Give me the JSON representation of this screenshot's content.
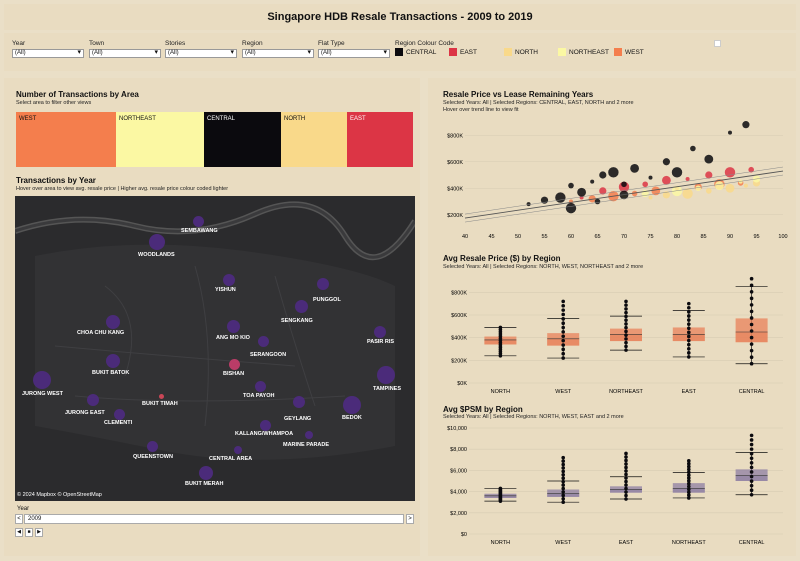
{
  "title": "Singapore HDB Resale Transactions - 2009 to 2019",
  "filters": [
    {
      "label": "Year",
      "value": "(All)"
    },
    {
      "label": "Town",
      "value": "(All)"
    },
    {
      "label": "Stories",
      "value": "(All)"
    },
    {
      "label": "Region",
      "value": "(All)"
    },
    {
      "label": "Flat Type",
      "value": "(All)"
    }
  ],
  "region_legend": {
    "title": "Region Colour Code",
    "items": [
      {
        "label": "CENTRAL",
        "color": "#0b0a0e"
      },
      {
        "label": "EAST",
        "color": "#dc3545"
      },
      {
        "label": "NORTH",
        "color": "#f9d98a"
      },
      {
        "label": "NORTHEAST",
        "color": "#fbf8a3"
      },
      {
        "label": "WEST",
        "color": "#f47e4d"
      }
    ]
  },
  "area_panel": {
    "title": "Number of Transactions by Area",
    "subtitle": "Select area to filter other views",
    "boxes": [
      {
        "label": "WEST",
        "color": "#f47e4d"
      },
      {
        "label": "NORTHEAST",
        "color": "#fbf8a3"
      },
      {
        "label": "CENTRAL",
        "color": "#0b0a0e"
      },
      {
        "label": "NORTH",
        "color": "#f9d98a"
      },
      {
        "label": "EAST",
        "color": "#dc3545"
      }
    ]
  },
  "map_panel": {
    "title": "Transactions by Year",
    "subtitle": "Hover over area to view avg. resale price | Higher avg. resale price colour coded lighter",
    "attribution": "© 2024 Mapbox © OpenStreetMap",
    "towns": [
      "SEMBAWANG",
      "WOODLANDS",
      "YISHUN",
      "PUNGGOL",
      "SENGKANG",
      "CHOA CHU KANG",
      "ANG MO KIO",
      "PASIR RIS",
      "SERANGOON",
      "BUKIT BATOK",
      "BISHAN",
      "TAMPINES",
      "JURONG WEST",
      "TOA PAYOH",
      "BUKIT TIMAH",
      "JURONG EAST",
      "GEYLANG",
      "BEDOK",
      "CLEMENTI",
      "KALLANG/WHAMPOA",
      "MARINE PARADE",
      "QUEENSTOWN",
      "CENTRAL AREA",
      "BUKIT MERAH"
    ]
  },
  "year_control": {
    "label": "Year",
    "value": "2009",
    "prev": "<",
    "next": ">"
  },
  "scatter_panel": {
    "title": "Resale Price vs Lease Remaining Years",
    "subtitle1": "Selected Years: All | Selected Regions: CENTRAL, EAST, NORTH and 2 more",
    "subtitle2": "Hover over trend line to view fit"
  },
  "box_price_panel": {
    "title": "Avg Resale Price ($) by Region",
    "subtitle": "Selected Years: All | Selected Regions: NORTH, WEST, NORTHEAST and 2 more"
  },
  "box_psm_panel": {
    "title": "Avg $PSM by Region",
    "subtitle": "Selected Years: All | Selected Regions: NORTH, WEST, EAST and 2 more"
  },
  "chart_data": [
    {
      "type": "scatter",
      "title": "Resale Price vs Lease Remaining Years",
      "x_ticks": [
        "40",
        "45",
        "50",
        "55",
        "60",
        "65",
        "70",
        "75",
        "80",
        "85",
        "90",
        "95",
        "100"
      ],
      "y_ticks": [
        "$200K",
        "$400K",
        "$600K",
        "$800K"
      ],
      "xlim": [
        40,
        100
      ],
      "ylim": [
        100000,
        900000
      ],
      "trend": {
        "x": [
          40,
          100
        ],
        "y": [
          175000,
          530000
        ]
      },
      "series": [
        {
          "name": "CENTRAL",
          "color": "#0b0a0e",
          "points": [
            [
              52,
              280000
            ],
            [
              55,
              310000
            ],
            [
              58,
              330000
            ],
            [
              60,
              420000
            ],
            [
              62,
              370000
            ],
            [
              64,
              450000
            ],
            [
              66,
              500000
            ],
            [
              68,
              520000
            ],
            [
              70,
              430000
            ],
            [
              72,
              550000
            ],
            [
              75,
              480000
            ],
            [
              78,
              600000
            ],
            [
              80,
              520000
            ],
            [
              83,
              700000
            ],
            [
              86,
              620000
            ],
            [
              90,
              820000
            ],
            [
              93,
              880000
            ],
            [
              60,
              250000
            ],
            [
              65,
              300000
            ],
            [
              70,
              350000
            ]
          ]
        },
        {
          "name": "EAST",
          "color": "#dc3545",
          "points": [
            [
              62,
              330000
            ],
            [
              66,
              380000
            ],
            [
              70,
              410000
            ],
            [
              74,
              430000
            ],
            [
              78,
              460000
            ],
            [
              82,
              470000
            ],
            [
              86,
              500000
            ],
            [
              90,
              520000
            ],
            [
              94,
              540000
            ]
          ]
        },
        {
          "name": "NORTH",
          "color": "#f9d98a",
          "points": [
            [
              75,
              330000
            ],
            [
              78,
              350000
            ],
            [
              82,
              360000
            ],
            [
              86,
              380000
            ],
            [
              90,
              400000
            ],
            [
              93,
              420000
            ],
            [
              95,
              440000
            ]
          ]
        },
        {
          "name": "NORTHEAST",
          "color": "#fbf8a3",
          "points": [
            [
              70,
              340000
            ],
            [
              74,
              360000
            ],
            [
              80,
              380000
            ],
            [
              84,
              400000
            ],
            [
              88,
              420000
            ],
            [
              92,
              450000
            ],
            [
              95,
              470000
            ]
          ]
        },
        {
          "name": "WEST",
          "color": "#f47e4d",
          "points": [
            [
              60,
              300000
            ],
            [
              64,
              320000
            ],
            [
              68,
              340000
            ],
            [
              72,
              360000
            ],
            [
              76,
              380000
            ],
            [
              80,
              400000
            ],
            [
              84,
              410000
            ],
            [
              88,
              430000
            ],
            [
              92,
              440000
            ]
          ]
        }
      ]
    },
    {
      "type": "box",
      "title": "Avg Resale Price ($) by Region",
      "categories": [
        "NORTH",
        "WEST",
        "NORTHEAST",
        "EAST",
        "CENTRAL"
      ],
      "y_ticks": [
        "$0K",
        "$200K",
        "$400K",
        "$600K",
        "$800K"
      ],
      "ylim": [
        0,
        900000
      ],
      "boxes": [
        {
          "whisker_low": 240000,
          "q1": 340000,
          "median": 380000,
          "q3": 410000,
          "whisker_high": 490000,
          "outlier_max": 490000
        },
        {
          "whisker_low": 220000,
          "q1": 330000,
          "median": 390000,
          "q3": 440000,
          "whisker_high": 570000,
          "outlier_max": 720000
        },
        {
          "whisker_low": 290000,
          "q1": 370000,
          "median": 430000,
          "q3": 480000,
          "whisker_high": 590000,
          "outlier_max": 720000
        },
        {
          "whisker_low": 230000,
          "q1": 370000,
          "median": 430000,
          "q3": 490000,
          "whisker_high": 640000,
          "outlier_max": 700000
        },
        {
          "whisker_low": 170000,
          "q1": 360000,
          "median": 450000,
          "q3": 570000,
          "whisker_high": 850000,
          "outlier_max": 920000
        }
      ],
      "fill_color": "#e8815a"
    },
    {
      "type": "box",
      "title": "Avg $PSM by Region",
      "categories": [
        "NORTH",
        "WEST",
        "EAST",
        "NORTHEAST",
        "CENTRAL"
      ],
      "y_ticks": [
        "$0",
        "$2,000",
        "$4,000",
        "$6,000",
        "$8,000",
        "$10,000"
      ],
      "ylim": [
        0,
        10000
      ],
      "boxes": [
        {
          "whisker_low": 3100,
          "q1": 3400,
          "median": 3600,
          "q3": 3800,
          "whisker_high": 4300,
          "outlier_max": 4300
        },
        {
          "whisker_low": 3000,
          "q1": 3500,
          "median": 3800,
          "q3": 4200,
          "whisker_high": 5000,
          "outlier_max": 7200
        },
        {
          "whisker_low": 3300,
          "q1": 3900,
          "median": 4200,
          "q3": 4500,
          "whisker_high": 5400,
          "outlier_max": 7600
        },
        {
          "whisker_low": 3400,
          "q1": 3900,
          "median": 4300,
          "q3": 4800,
          "whisker_high": 5800,
          "outlier_max": 6900
        },
        {
          "whisker_low": 3700,
          "q1": 5000,
          "median": 5500,
          "q3": 6100,
          "whisker_high": 7700,
          "outlier_max": 9300
        }
      ],
      "fill_color": "#8e7fa3"
    }
  ]
}
